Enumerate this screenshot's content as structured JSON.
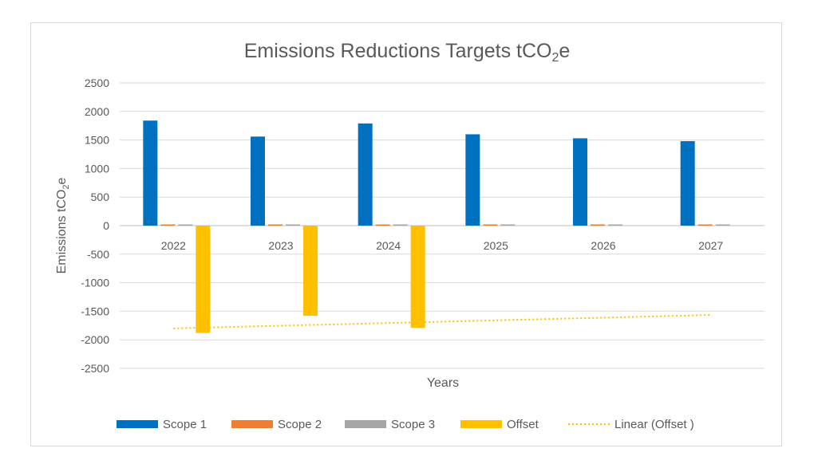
{
  "chart_data": {
    "type": "bar",
    "title": "Emissions Reductions Targets tCO",
    "title_sub": "2",
    "title_suffix": "e",
    "xlabel": "Years",
    "ylabel": "Emissions tCO",
    "ylabel_sub": "2",
    "ylabel_suffix": "e",
    "ylim": [
      -2500,
      2500
    ],
    "yticks": [
      2500,
      2000,
      1500,
      1000,
      500,
      0,
      -500,
      -1000,
      -1500,
      -2000,
      -2500
    ],
    "categories": [
      "2022",
      "2023",
      "2024",
      "2025",
      "2026",
      "2027"
    ],
    "series": [
      {
        "name": "Scope 1",
        "color": "#0070c0",
        "values": [
          1840,
          1560,
          1790,
          1600,
          1530,
          1480
        ]
      },
      {
        "name": "Scope 2",
        "color": "#ed7d31",
        "values": [
          20,
          5,
          5,
          15,
          15,
          5
        ]
      },
      {
        "name": "Scope 3",
        "color": "#a5a5a5",
        "values": [
          20,
          10,
          10,
          15,
          15,
          10
        ]
      },
      {
        "name": "Offset",
        "color": "#ffc000",
        "values": [
          -1880,
          -1580,
          -1790,
          0,
          0,
          0
        ]
      }
    ],
    "trendline": {
      "name": "Linear (Offset )",
      "color": "#ffc000",
      "start": -1800,
      "end": -1565
    },
    "grid": true,
    "legend_position": "bottom"
  }
}
